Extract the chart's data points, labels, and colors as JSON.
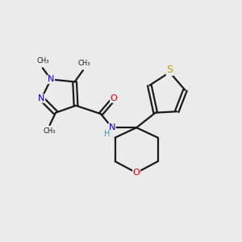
{
  "background_color": "#ebebeb",
  "bond_color": "#1a1a1a",
  "figsize": [
    3.0,
    3.0
  ],
  "dpi": 100,
  "atoms": {
    "N_blue": "#0000cc",
    "O_red": "#cc0000",
    "S_yellow": "#b8a000",
    "NH_teal": "#4a9090",
    "C_black": "#1a1a1a"
  },
  "xlim": [
    0,
    10
  ],
  "ylim": [
    0,
    10
  ]
}
